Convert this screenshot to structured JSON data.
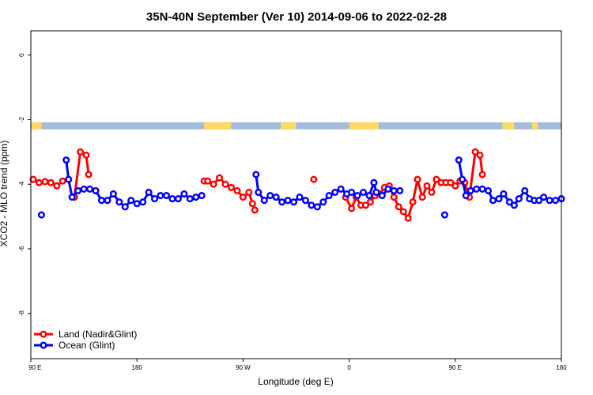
{
  "chart_data": {
    "type": "line",
    "title": "35N-40N September (Ver 10)   2014-09-06 to 2022-02-28",
    "xlabel": "Longitude (deg E)",
    "ylabel": "XCO2 - MLO trend (ppm)",
    "xlim": [
      90,
      540
    ],
    "ylim": [
      -9.4,
      0.75
    ],
    "x_ticks": [
      {
        "value": 90,
        "label": "90 E"
      },
      {
        "value": 180,
        "label": "180"
      },
      {
        "value": 270,
        "label": "90 W"
      },
      {
        "value": 360,
        "label": "0"
      },
      {
        "value": 450,
        "label": "90 E"
      },
      {
        "value": 540,
        "label": "180"
      }
    ],
    "y_ticks": [
      {
        "value": 0,
        "label": "0"
      },
      {
        "value": -2,
        "label": "-2"
      },
      {
        "value": -4,
        "label": "-4"
      },
      {
        "value": -6,
        "label": "-6"
      },
      {
        "value": -8,
        "label": "-8"
      }
    ],
    "legend_position": "bottom-left",
    "land_ocean_strip": {
      "y_top": -2.08,
      "y_bottom": -2.3,
      "land_color": "#ffd966",
      "ocean_color": "#a3bbdc",
      "land_spans": [
        [
          90,
          99
        ],
        [
          237,
          260
        ],
        [
          302,
          315
        ],
        [
          360,
          385
        ],
        [
          490,
          500
        ],
        [
          515,
          520
        ]
      ]
    },
    "series": [
      {
        "name": "Land (Nadir&Glint)",
        "color": "#ff0000",
        "segments": [
          [
            [
              92,
              -3.85
            ],
            [
              97,
              -3.95
            ],
            [
              102,
              -3.92
            ],
            [
              107,
              -3.95
            ],
            [
              112,
              -4.05
            ],
            [
              117,
              -3.9
            ]
          ],
          [
            [
              127,
              -4.4
            ],
            [
              132,
              -3.0
            ],
            [
              137,
              -3.1
            ],
            [
              139,
              -3.7
            ]
          ],
          [
            [
              237,
              -3.9
            ],
            [
              240,
              -3.9
            ],
            [
              245,
              -4.0
            ],
            [
              250,
              -3.8
            ],
            [
              255,
              -4.0
            ],
            [
              260,
              -4.1
            ],
            [
              265,
              -4.2
            ],
            [
              270,
              -4.4
            ],
            [
              275,
              -4.25
            ],
            [
              278,
              -4.6
            ],
            [
              280,
              -4.8
            ]
          ],
          [
            [
              330,
              -3.85
            ]
          ],
          [
            [
              357,
              -4.4
            ],
            [
              362,
              -4.75
            ],
            [
              366,
              -4.4
            ],
            [
              370,
              -4.65
            ],
            [
              374,
              -4.65
            ],
            [
              378,
              -4.55
            ],
            [
              382,
              -4.35
            ],
            [
              386,
              -4.3
            ],
            [
              390,
              -4.1
            ],
            [
              394,
              -4.05
            ],
            [
              398,
              -4.4
            ],
            [
              402,
              -4.7
            ],
            [
              406,
              -4.85
            ],
            [
              410,
              -5.05
            ],
            [
              414,
              -4.55
            ],
            [
              418,
              -3.85
            ],
            [
              422,
              -4.4
            ],
            [
              426,
              -4.05
            ],
            [
              430,
              -4.25
            ],
            [
              434,
              -3.85
            ],
            [
              438,
              -3.95
            ],
            [
              442,
              -3.95
            ],
            [
              446,
              -3.95
            ],
            [
              450,
              -4.05
            ],
            [
              454,
              -3.9
            ],
            [
              458,
              -3.95
            ],
            [
              462,
              -4.4
            ],
            [
              467,
              -3.0
            ],
            [
              471,
              -3.1
            ],
            [
              473,
              -3.7
            ]
          ]
        ]
      },
      {
        "name": "Ocean (Glint)",
        "color": "#0000ff",
        "segments": [
          [
            [
              99,
              -4.95
            ]
          ],
          [
            [
              120,
              -3.25
            ],
            [
              122,
              -3.85
            ],
            [
              125,
              -4.4
            ],
            [
              130,
              -4.2
            ],
            [
              135,
              -4.15
            ],
            [
              140,
              -4.15
            ],
            [
              145,
              -4.2
            ],
            [
              150,
              -4.5
            ],
            [
              155,
              -4.5
            ],
            [
              160,
              -4.3
            ],
            [
              165,
              -4.55
            ],
            [
              170,
              -4.7
            ],
            [
              175,
              -4.5
            ],
            [
              180,
              -4.6
            ],
            [
              185,
              -4.55
            ],
            [
              190,
              -4.25
            ],
            [
              195,
              -4.45
            ],
            [
              200,
              -4.35
            ],
            [
              205,
              -4.35
            ],
            [
              210,
              -4.45
            ],
            [
              215,
              -4.45
            ],
            [
              220,
              -4.3
            ],
            [
              225,
              -4.45
            ],
            [
              230,
              -4.4
            ],
            [
              235,
              -4.35
            ]
          ],
          [
            [
              281,
              -3.7
            ],
            [
              283,
              -4.25
            ],
            [
              288,
              -4.5
            ],
            [
              293,
              -4.35
            ],
            [
              298,
              -4.4
            ],
            [
              303,
              -4.55
            ],
            [
              308,
              -4.5
            ],
            [
              313,
              -4.55
            ],
            [
              318,
              -4.4
            ],
            [
              323,
              -4.5
            ],
            [
              328,
              -4.65
            ],
            [
              333,
              -4.7
            ],
            [
              338,
              -4.55
            ],
            [
              343,
              -4.35
            ],
            [
              348,
              -4.25
            ],
            [
              353,
              -4.15
            ],
            [
              358,
              -4.3
            ],
            [
              362,
              -4.25
            ],
            [
              367,
              -4.35
            ],
            [
              372,
              -4.25
            ],
            [
              377,
              -4.35
            ],
            [
              381,
              -3.95
            ],
            [
              383,
              -4.25
            ],
            [
              388,
              -4.35
            ],
            [
              393,
              -4.15
            ],
            [
              398,
              -4.2
            ],
            [
              403,
              -4.2
            ]
          ],
          [
            [
              441,
              -4.95
            ]
          ],
          [
            [
              453,
              -3.25
            ],
            [
              456,
              -3.85
            ],
            [
              459,
              -4.35
            ],
            [
              463,
              -4.2
            ],
            [
              468,
              -4.15
            ],
            [
              473,
              -4.15
            ],
            [
              478,
              -4.2
            ],
            [
              482,
              -4.5
            ],
            [
              487,
              -4.45
            ],
            [
              491,
              -4.3
            ],
            [
              496,
              -4.55
            ],
            [
              500,
              -4.65
            ],
            [
              504,
              -4.45
            ],
            [
              509,
              -4.2
            ],
            [
              513,
              -4.45
            ],
            [
              517,
              -4.5
            ],
            [
              521,
              -4.5
            ],
            [
              525,
              -4.4
            ],
            [
              530,
              -4.5
            ],
            [
              535,
              -4.5
            ],
            [
              540,
              -4.45
            ]
          ]
        ]
      }
    ]
  }
}
